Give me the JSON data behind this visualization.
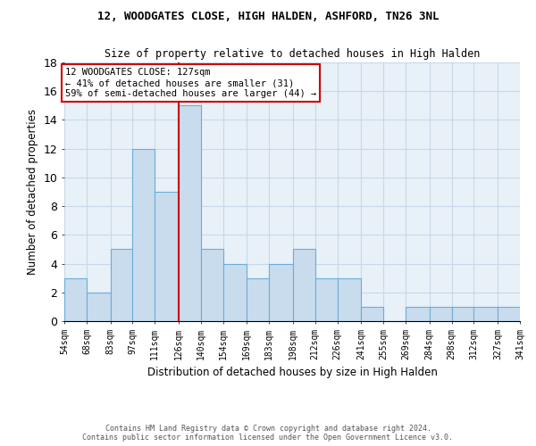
{
  "title1": "12, WOODGATES CLOSE, HIGH HALDEN, ASHFORD, TN26 3NL",
  "title2": "Size of property relative to detached houses in High Halden",
  "xlabel": "Distribution of detached houses by size in High Halden",
  "ylabel": "Number of detached properties",
  "footer1": "Contains HM Land Registry data © Crown copyright and database right 2024.",
  "footer2": "Contains public sector information licensed under the Open Government Licence v3.0.",
  "annotation_title": "12 WOODGATES CLOSE: 127sqm",
  "annotation_line1": "← 41% of detached houses are smaller (31)",
  "annotation_line2": "59% of semi-detached houses are larger (44) →",
  "property_size": 127,
  "bin_edges": [
    54,
    68,
    83,
    97,
    111,
    126,
    140,
    154,
    169,
    183,
    198,
    212,
    226,
    241,
    255,
    269,
    284,
    298,
    312,
    327,
    341
  ],
  "bar_heights": [
    3,
    2,
    5,
    12,
    9,
    15,
    5,
    4,
    3,
    4,
    5,
    3,
    3,
    1,
    0,
    1,
    1,
    1,
    1,
    1
  ],
  "bar_color": "#c9dcee",
  "bar_edge_color": "#6aaed6",
  "vline_color": "#cc0000",
  "vline_x": 126,
  "annotation_box_color": "#ffffff",
  "annotation_box_edge": "#cc0000",
  "grid_color": "#c8d8e8",
  "background_color": "#e8f0f8",
  "tick_labels": [
    "54sqm",
    "68sqm",
    "83sqm",
    "97sqm",
    "111sqm",
    "126sqm",
    "140sqm",
    "154sqm",
    "169sqm",
    "183sqm",
    "198sqm",
    "212sqm",
    "226sqm",
    "241sqm",
    "255sqm",
    "269sqm",
    "284sqm",
    "298sqm",
    "312sqm",
    "327sqm",
    "341sqm"
  ],
  "ylim": [
    0,
    18
  ],
  "yticks": [
    0,
    2,
    4,
    6,
    8,
    10,
    12,
    14,
    16,
    18
  ]
}
